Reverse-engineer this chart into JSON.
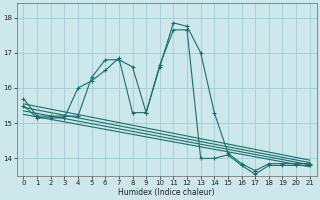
{
  "xlabel": "Humidex (Indice chaleur)",
  "bg_color": "#cde8ea",
  "grid_color": "#a8d0d4",
  "line_color": "#1a6e6a",
  "xlim": [
    -0.5,
    21.5
  ],
  "ylim": [
    13.5,
    18.4
  ],
  "yticks": [
    14,
    15,
    16,
    17,
    18
  ],
  "xticks": [
    0,
    1,
    2,
    3,
    4,
    5,
    6,
    7,
    8,
    9,
    10,
    11,
    12,
    13,
    14,
    15,
    16,
    17,
    18,
    19,
    20,
    21
  ],
  "series1_x": [
    0,
    1,
    2,
    3,
    4,
    5,
    6,
    7,
    8,
    9,
    10,
    11,
    12,
    13,
    14,
    15,
    16,
    17,
    18,
    19,
    20,
    21
  ],
  "series1_y": [
    15.7,
    15.2,
    15.2,
    15.2,
    15.2,
    16.3,
    16.8,
    16.8,
    16.6,
    15.3,
    16.6,
    17.85,
    17.75,
    17.0,
    15.3,
    14.15,
    13.85,
    13.65,
    13.85,
    13.85,
    13.85,
    13.85
  ],
  "series2_x": [
    0,
    1,
    2,
    3,
    4,
    5,
    6,
    7,
    8,
    9,
    10,
    11,
    12,
    13,
    14,
    15,
    16,
    17,
    18,
    19,
    20,
    21
  ],
  "series2_y": [
    15.5,
    15.15,
    15.15,
    15.15,
    16.0,
    16.2,
    16.5,
    16.85,
    15.3,
    15.3,
    16.65,
    17.65,
    17.65,
    14.0,
    14.0,
    14.1,
    13.8,
    13.55,
    13.8,
    13.8,
    13.8,
    13.8
  ],
  "trend_lines": [
    [
      [
        0,
        21
      ],
      [
        15.55,
        13.95
      ]
    ],
    [
      [
        0,
        21
      ],
      [
        15.45,
        13.88
      ]
    ],
    [
      [
        0,
        21
      ],
      [
        15.35,
        13.82
      ]
    ],
    [
      [
        0,
        21
      ],
      [
        15.25,
        13.76
      ]
    ]
  ]
}
